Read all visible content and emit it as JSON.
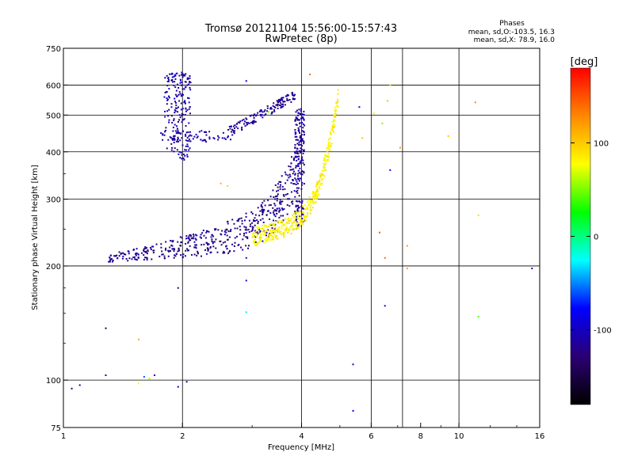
{
  "chart_data": {
    "type": "scatter",
    "title_line1": "Tromsø 20121104 15:56:00-15:57:43",
    "title_line2": "RwPretec (8p)",
    "xlabel": "Frequency [MHz]",
    "ylabel": "Stationary phase Virtual Height [km]",
    "x_scale": "log",
    "y_scale": "log",
    "xlim": [
      1,
      16
    ],
    "ylim": [
      75,
      750
    ],
    "x_ticks": [
      1,
      2,
      4,
      6,
      8,
      10,
      16
    ],
    "x_tick_labels": [
      "1",
      "2",
      "4",
      "6",
      "8",
      "10",
      "16"
    ],
    "x_grid": [
      2,
      4,
      6,
      7.2,
      10
    ],
    "y_ticks": [
      75,
      100,
      200,
      300,
      400,
      500,
      600,
      750
    ],
    "y_tick_labels": [
      "75",
      "100",
      "200",
      "300",
      "400",
      "500",
      "600",
      "750"
    ],
    "y_grid": [
      100,
      200,
      300,
      400,
      500,
      600
    ],
    "grid": true,
    "legend_title": "Phases",
    "legend_lines": [
      "mean, sd,O:-103.5, 16.3",
      "mean, sd,X:  78.9, 16.0"
    ],
    "legend_placement": "top-right",
    "colorbar": {
      "label": "[deg]",
      "range": [
        -180,
        180
      ],
      "ticks": [
        100,
        0,
        -100
      ],
      "tick_labels": [
        "100",
        "0",
        "-100"
      ],
      "stops": [
        "#ff0000",
        "#ff8800",
        "#ffff00",
        "#00ff00",
        "#00ffff",
        "#0000ff",
        "#2b0073",
        "#000000"
      ]
    },
    "series": [
      {
        "role": "O-trace lower layer",
        "color": "#2a17b8",
        "x_range": [
          1.3,
          4.05
        ],
        "h_range": [
          205,
          420
        ]
      },
      {
        "role": "O-trace F2 upper",
        "color": "#2a17b8",
        "x_range": [
          2.6,
          3.8
        ],
        "h_range": [
          450,
          570
        ]
      },
      {
        "role": "O-trace spread 1.8-2.1",
        "color": "#2a17b8",
        "x_range": [
          1.8,
          2.1
        ],
        "h_range": [
          380,
          650
        ]
      },
      {
        "role": "X-trace",
        "color": "#c8f01e",
        "x_range": [
          3.0,
          4.9
        ],
        "h_range": [
          225,
          430
        ]
      }
    ],
    "scatter_points": [
      [
        1.05,
        95,
        -120
      ],
      [
        1.1,
        97,
        -110
      ],
      [
        1.28,
        103,
        -120
      ],
      [
        1.28,
        137,
        -140
      ],
      [
        1.55,
        98,
        80
      ],
      [
        1.6,
        102,
        -60
      ],
      [
        1.65,
        101,
        60
      ],
      [
        1.7,
        103,
        -120
      ],
      [
        1.55,
        128,
        110
      ],
      [
        1.95,
        96,
        -100
      ],
      [
        2.05,
        99,
        -120
      ],
      [
        1.95,
        175,
        -120
      ],
      [
        2.9,
        183,
        -90
      ],
      [
        2.9,
        151,
        -30
      ],
      [
        2.9,
        210,
        -90
      ],
      [
        5.4,
        110,
        -100
      ],
      [
        5.4,
        83,
        -80
      ],
      [
        6.5,
        157,
        -90
      ],
      [
        7.4,
        197,
        120
      ],
      [
        7.4,
        226,
        120
      ],
      [
        6.3,
        245,
        150
      ],
      [
        6.5,
        210,
        140
      ],
      [
        11.2,
        272,
        90
      ],
      [
        11.2,
        147,
        40
      ],
      [
        15.3,
        197,
        -100
      ],
      [
        11.0,
        540,
        130
      ],
      [
        9.4,
        440,
        100
      ],
      [
        7.1,
        410,
        120
      ],
      [
        6.4,
        475,
        50
      ],
      [
        6.1,
        505,
        70
      ],
      [
        5.6,
        525,
        -100
      ],
      [
        5.7,
        435,
        100
      ],
      [
        6.7,
        600,
        90
      ],
      [
        6.6,
        545,
        50
      ],
      [
        6.7,
        358,
        -80
      ],
      [
        4.2,
        640,
        140
      ],
      [
        2.9,
        615,
        -90
      ],
      [
        3.3,
        510,
        40
      ],
      [
        2.5,
        330,
        110
      ],
      [
        2.6,
        325,
        60
      ]
    ]
  },
  "icons": [
    "colorbar-gradient"
  ]
}
